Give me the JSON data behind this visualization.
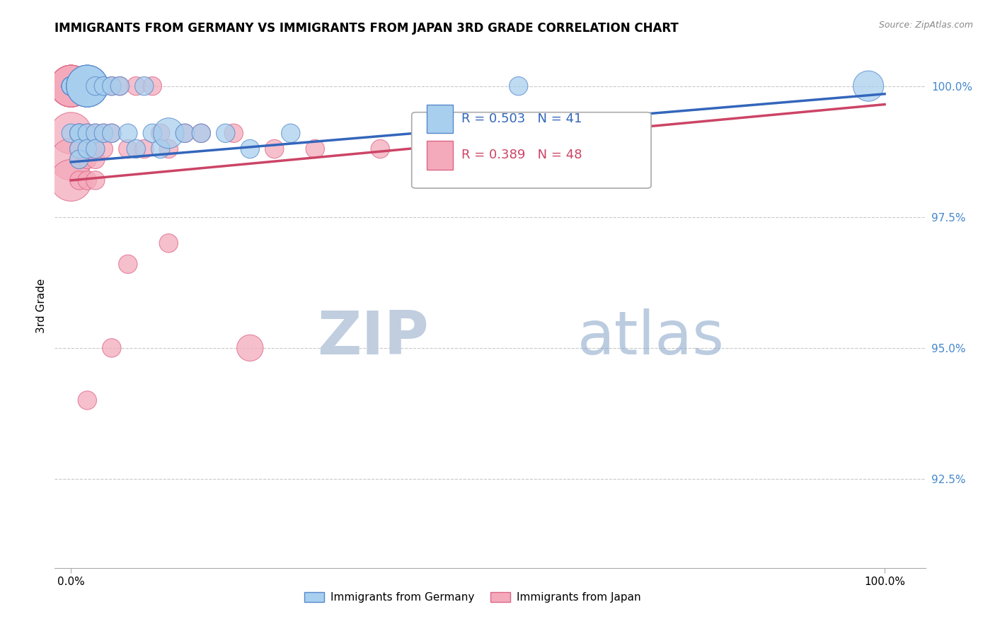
{
  "title": "IMMIGRANTS FROM GERMANY VS IMMIGRANTS FROM JAPAN 3RD GRADE CORRELATION CHART",
  "source_text": "Source: ZipAtlas.com",
  "ylabel": "3rd Grade",
  "y_ticks": [
    0.925,
    0.95,
    0.975,
    1.0
  ],
  "y_tick_labels": [
    "92.5%",
    "95.0%",
    "97.5%",
    "100.0%"
  ],
  "y_min": 0.908,
  "y_max": 1.008,
  "x_min": -0.02,
  "x_max": 1.05,
  "legend_R_germany": "R = 0.503",
  "legend_N_germany": "N = 41",
  "legend_R_japan": "R = 0.389",
  "legend_N_japan": "N = 48",
  "germany_color": "#A8CFEE",
  "japan_color": "#F4AABB",
  "germany_edge_color": "#5588CC",
  "japan_edge_color": "#DD6688",
  "germany_line_color": "#3366BB",
  "japan_line_color": "#CC4466",
  "watermark_zip_color": "#C0CEDF",
  "watermark_atlas_color": "#90AACC",
  "grid_color": "#BBBBBB",
  "germany_scatter_x": [
    0.0,
    0.0,
    0.0,
    0.0,
    0.0,
    0.0,
    0.0,
    0.0,
    0.0,
    0.01,
    0.01,
    0.01,
    0.01,
    0.02,
    0.02,
    0.02,
    0.02,
    0.02,
    0.02,
    0.02,
    0.03,
    0.03,
    0.03,
    0.04,
    0.04,
    0.05,
    0.05,
    0.06,
    0.07,
    0.08,
    0.09,
    0.1,
    0.11,
    0.12,
    0.14,
    0.16,
    0.19,
    0.22,
    0.27,
    0.55,
    0.98
  ],
  "germany_scatter_y": [
    1.0,
    1.0,
    1.0,
    1.0,
    1.0,
    1.0,
    1.0,
    1.0,
    0.991,
    0.991,
    0.991,
    0.988,
    0.986,
    1.0,
    1.0,
    1.0,
    1.0,
    1.0,
    0.991,
    0.988,
    1.0,
    0.991,
    0.988,
    1.0,
    0.991,
    1.0,
    0.991,
    1.0,
    0.991,
    0.988,
    1.0,
    0.991,
    0.988,
    0.991,
    0.991,
    0.991,
    0.991,
    0.988,
    0.991,
    1.0,
    1.0
  ],
  "germany_scatter_size": [
    30,
    30,
    30,
    30,
    30,
    30,
    30,
    30,
    30,
    30,
    30,
    30,
    30,
    150,
    150,
    150,
    150,
    150,
    30,
    30,
    30,
    30,
    30,
    30,
    30,
    30,
    30,
    30,
    30,
    30,
    30,
    30,
    30,
    80,
    30,
    30,
    30,
    30,
    30,
    30,
    80
  ],
  "japan_scatter_x": [
    0.0,
    0.0,
    0.0,
    0.0,
    0.0,
    0.0,
    0.0,
    0.0,
    0.0,
    0.0,
    0.01,
    0.01,
    0.01,
    0.01,
    0.01,
    0.02,
    0.02,
    0.02,
    0.02,
    0.02,
    0.03,
    0.03,
    0.03,
    0.03,
    0.03,
    0.04,
    0.04,
    0.04,
    0.05,
    0.05,
    0.06,
    0.07,
    0.08,
    0.09,
    0.1,
    0.11,
    0.12,
    0.14,
    0.16,
    0.2,
    0.25,
    0.3,
    0.38,
    0.22,
    0.12,
    0.07,
    0.05,
    0.02
  ],
  "japan_scatter_y": [
    1.0,
    1.0,
    1.0,
    1.0,
    1.0,
    1.0,
    1.0,
    0.991,
    0.986,
    0.982,
    1.0,
    0.991,
    0.988,
    0.986,
    0.982,
    1.0,
    0.991,
    0.988,
    0.986,
    0.982,
    1.0,
    0.991,
    0.988,
    0.986,
    0.982,
    1.0,
    0.991,
    0.988,
    1.0,
    0.991,
    1.0,
    0.988,
    1.0,
    0.988,
    1.0,
    0.991,
    0.988,
    0.991,
    0.991,
    0.991,
    0.988,
    0.988,
    0.988,
    0.95,
    0.97,
    0.966,
    0.95,
    0.94
  ],
  "japan_scatter_size": [
    150,
    150,
    150,
    150,
    150,
    150,
    150,
    150,
    150,
    150,
    30,
    30,
    30,
    30,
    30,
    30,
    30,
    30,
    30,
    30,
    30,
    30,
    30,
    30,
    30,
    30,
    30,
    30,
    30,
    30,
    30,
    30,
    30,
    30,
    30,
    30,
    30,
    30,
    30,
    30,
    30,
    30,
    30,
    60,
    30,
    30,
    30,
    30
  ],
  "germany_line_x": [
    0.0,
    1.0
  ],
  "germany_line_y": [
    0.9855,
    0.9985
  ],
  "japan_line_x": [
    0.0,
    1.0
  ],
  "japan_line_y": [
    0.982,
    0.9965
  ]
}
